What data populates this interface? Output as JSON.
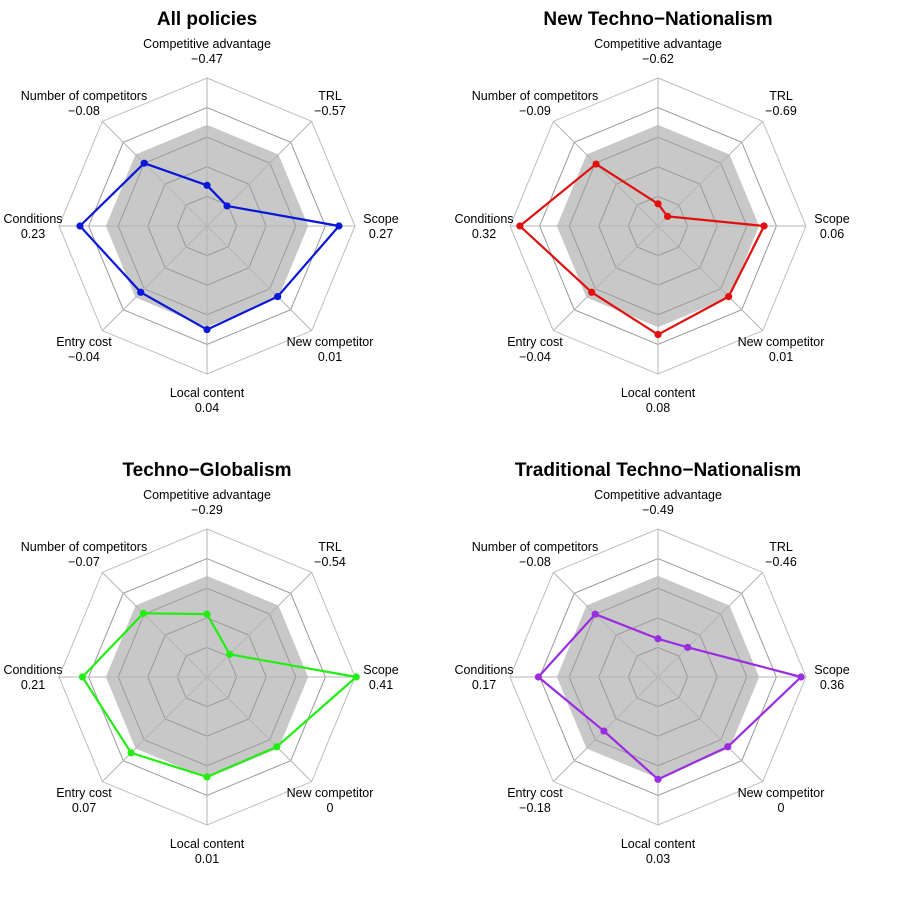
{
  "chart_data": [
    {
      "type": "radar",
      "title": "All policies",
      "color": "#0a17d6",
      "axes": [
        "Competitive advantage",
        "TRL",
        "Scope",
        "New competitor",
        "Local content",
        "Entry cost",
        "Conditions",
        "Number of competitors"
      ],
      "value_labels": [
        "−0.47",
        "−0.57",
        "0.27",
        "0.01",
        "0.04",
        "−0.04",
        "0.23",
        "−0.08"
      ],
      "values": [
        -0.47,
        -0.57,
        0.27,
        0.01,
        0.04,
        -0.04,
        0.23,
        -0.08
      ],
      "band": [
        0.02,
        0.02,
        0.02,
        0.02,
        0.02,
        0.02,
        0.02,
        0.02
      ],
      "range": [
        -0.8,
        0.4
      ]
    },
    {
      "type": "radar",
      "title": "New Techno−Nationalism",
      "color": "#e0100f",
      "axes": [
        "Competitive advantage",
        "TRL",
        "Scope",
        "New competitor",
        "Local content",
        "Entry cost",
        "Conditions",
        "Number of competitors"
      ],
      "value_labels": [
        "−0.62",
        "−0.69",
        "0.06",
        "0.01",
        "0.08",
        "−0.04",
        "0.32",
        "−0.09"
      ],
      "values": [
        -0.62,
        -0.69,
        0.06,
        0.01,
        0.08,
        -0.04,
        0.32,
        -0.09
      ],
      "band": [
        0.02,
        0.02,
        0.02,
        0.02,
        0.02,
        0.02,
        0.02,
        0.02
      ],
      "range": [
        -0.8,
        0.4
      ]
    },
    {
      "type": "radar",
      "title": "Techno−Globalism",
      "color": "#22ee11",
      "axes": [
        "Competitive advantage",
        "TRL",
        "Scope",
        "New competitor",
        "Local content",
        "Entry cost",
        "Conditions",
        "Number of competitors"
      ],
      "value_labels": [
        "−0.29",
        "−0.54",
        "0.41",
        "0",
        "0.01",
        "0.07",
        "0.21",
        "−0.07"
      ],
      "values": [
        -0.29,
        -0.54,
        0.41,
        0.0,
        0.01,
        0.07,
        0.21,
        -0.07
      ],
      "band": [
        0.02,
        0.02,
        0.02,
        0.02,
        0.02,
        0.02,
        0.02,
        0.02
      ],
      "range": [
        -0.8,
        0.4
      ]
    },
    {
      "type": "radar",
      "title": "Traditional Techno−Nationalism",
      "color": "#9b2de0",
      "axes": [
        "Competitive advantage",
        "TRL",
        "Scope",
        "New competitor",
        "Local content",
        "Entry cost",
        "Conditions",
        "Number of competitors"
      ],
      "value_labels": [
        "−0.49",
        "−0.46",
        "0.36",
        "0",
        "0.03",
        "−0.18",
        "0.17",
        "−0.08"
      ],
      "values": [
        -0.49,
        -0.46,
        0.36,
        0.0,
        0.03,
        -0.18,
        0.17,
        -0.08
      ],
      "band": [
        0.02,
        0.02,
        0.02,
        0.02,
        0.02,
        0.02,
        0.02,
        0.02
      ],
      "range": [
        -0.8,
        0.4
      ]
    }
  ]
}
